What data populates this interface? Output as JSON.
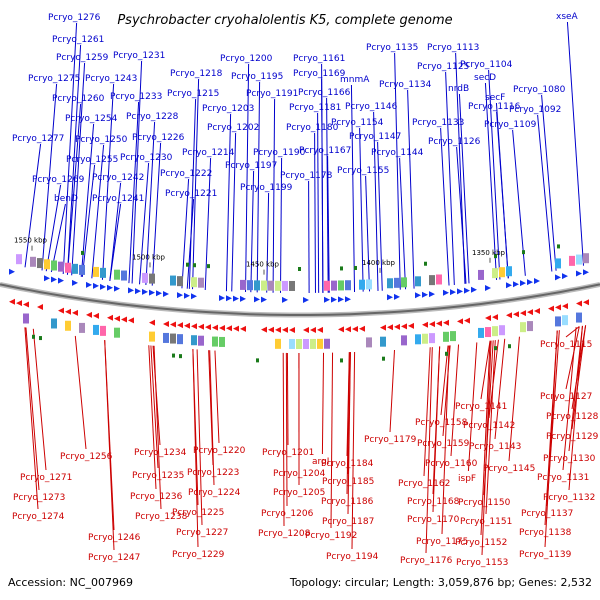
{
  "title": "Psychrobacter cryohalolentis K5, complete genome",
  "footer": {
    "accession": "Accession: NC_007969",
    "topology": "Topology: circular; Length: 3,059,876 bp; Genes: 2,532"
  },
  "colors": {
    "forward": "#0000cc",
    "reverse": "#cc0000",
    "backbone": "#888888",
    "tick": "#1a7a1a"
  },
  "ticks": [
    "1550 kbp",
    "1500 kbp",
    "1450 kbp",
    "1400 kbp",
    "1350 kbp"
  ],
  "forward_genes": [
    "Pcryo_1276",
    "Pcryo_1261",
    "Pcryo_1275",
    "Pcryo_1259",
    "Pcryo_1260",
    "Pcryo_1243",
    "Pcryo_1231",
    "Pcryo_1254",
    "Pcryo_1233",
    "Pcryo_1277",
    "Pcryo_1250",
    "Pcryo_1228",
    "Pcryo_1255",
    "Pcryo_1226",
    "Pcryo_1269",
    "Pcryo_1242",
    "Pcryo_1230",
    "benD",
    "Pcryo_1241",
    "Pcryo_1222",
    "Pcryo_1221",
    "Pcryo_1218",
    "Pcryo_1215",
    "Pcryo_1214",
    "Pcryo_1200",
    "Pcryo_1195",
    "Pcryo_1191",
    "Pcryo_1203",
    "Pcryo_1202",
    "Pcryo_1197",
    "Pcryo_1199",
    "Pcryo_1190",
    "Pcryo_1181",
    "Pcryo_1180",
    "Pcryo_1161",
    "Pcryo_1169",
    "Pcryo_1166",
    "Pcryo_1167",
    "Pcryo_1178",
    "mnmA",
    "Pcryo_1146",
    "Pcryo_1154",
    "Pcryo_1147",
    "Pcryo_1155",
    "Pcryo_1144",
    "Pcryo_1135",
    "Pcryo_1134",
    "Pcryo_1133",
    "Pcryo_1125",
    "Pcryo_1113",
    "Pcryo_1104",
    "secD",
    "nrdB",
    "secF",
    "Pcryo_1116",
    "Pcryo_1126",
    "Pcryo_1109",
    "xseA",
    "Pcryo_1080",
    "Pcryo_1092"
  ],
  "reverse_genes": [
    "Pcryo_1256",
    "Pcryo_1271",
    "Pcryo_1273",
    "Pcryo_1274",
    "Pcryo_1234",
    "Pcryo_1235",
    "Pcryo_1236",
    "Pcryo_1238",
    "Pcryo_1246",
    "Pcryo_1247",
    "Pcryo_1220",
    "Pcryo_1223",
    "Pcryo_1224",
    "Pcryo_1225",
    "Pcryo_1227",
    "Pcryo_1229",
    "Pcryo_1201",
    "Pcryo_1204",
    "Pcryo_1205",
    "Pcryo_1206",
    "Pcryo_1208",
    "argI",
    "Pcryo_1184",
    "Pcryo_1185",
    "Pcryo_1186",
    "Pcryo_1187",
    "Pcryo_1192",
    "Pcryo_1194",
    "Pcryo_1179",
    "Pcryo_1162",
    "Pcryo_1168",
    "Pcryo_1170",
    "Pcryo_1175",
    "Pcryo_1176",
    "Pcryo_1158",
    "Pcryo_1159",
    "Pcryo_1160",
    "ispF",
    "Pcryo_1150",
    "Pcryo_1151",
    "Pcryo_1152",
    "Pcryo_1153",
    "Pcryo_1141",
    "Pcryo_1142",
    "Pcryo_1143",
    "Pcryo_1145",
    "Pcryo_1127",
    "Pcryo_1128",
    "Pcryo_1129",
    "Pcryo_1130",
    "Pcryo_1131",
    "Pcryo_1132",
    "Pcryo_1137",
    "Pcryo_1138",
    "Pcryo_1139",
    "Pcryo_1115"
  ]
}
